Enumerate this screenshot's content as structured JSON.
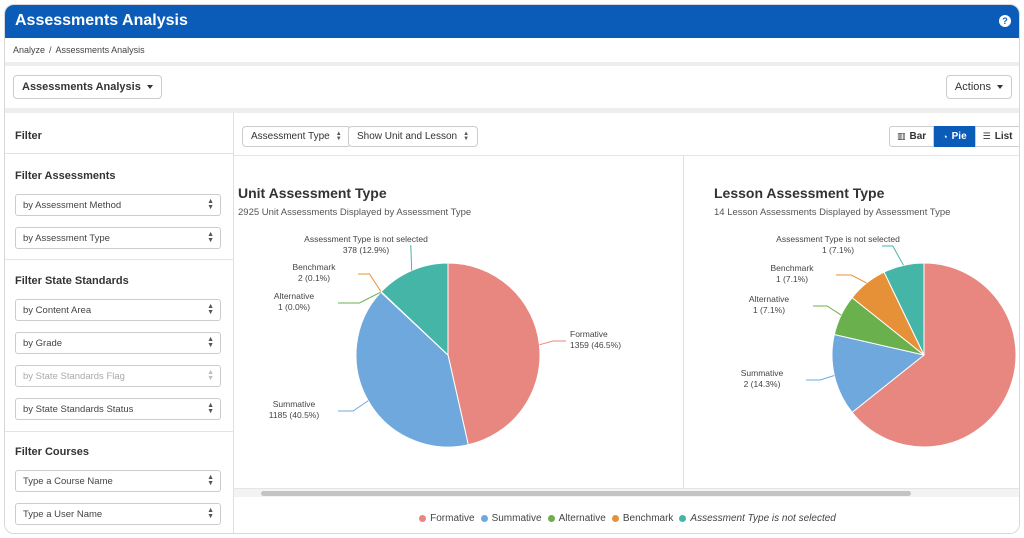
{
  "app": {
    "title": "Assessments Analysis"
  },
  "breadcrumb": {
    "items": [
      "Analyze",
      "Assessments Analysis"
    ],
    "separator": "/"
  },
  "toolbar": {
    "view_select": "Assessments Analysis",
    "actions_label": "Actions"
  },
  "sidebar": {
    "title": "Filter",
    "sections": [
      {
        "title": "Filter Assessments",
        "selects": [
          {
            "label": "by Assessment Method",
            "disabled": false
          },
          {
            "label": "by Assessment Type",
            "disabled": false
          }
        ]
      },
      {
        "title": "Filter State Standards",
        "selects": [
          {
            "label": "by Content Area",
            "disabled": false
          },
          {
            "label": "by Grade",
            "disabled": false
          },
          {
            "label": "by State Standards Flag",
            "disabled": true
          },
          {
            "label": "by State Standards Status",
            "disabled": false
          }
        ]
      },
      {
        "title": "Filter Courses",
        "selects": [
          {
            "label": "Type a Course Name",
            "disabled": false
          },
          {
            "label": "Type a User Name",
            "disabled": false
          }
        ]
      }
    ]
  },
  "main": {
    "group_by": "Assessment Type",
    "show_option": "Show Unit and Lesson",
    "view_toggle": [
      {
        "label": "Bar",
        "icon": "bar-chart-icon",
        "active": false
      },
      {
        "label": "Pie",
        "icon": "pie-chart-icon",
        "active": true
      },
      {
        "label": "List",
        "icon": "list-icon",
        "active": false
      }
    ]
  },
  "colors": {
    "Formative": "#e8877f",
    "Summative": "#6fa8dc",
    "Alternative": "#6ab04c",
    "Benchmark": "#e69138",
    "Assessment Type is not selected": "#45b5a8"
  },
  "chart_data": [
    {
      "type": "pie",
      "title": "Unit Assessment Type",
      "subtitle": "2925 Unit Assessments Displayed by Assessment Type",
      "slices": [
        {
          "name": "Formative",
          "value": 1359,
          "label": "Formative",
          "value_label": "1359 (46.5%)"
        },
        {
          "name": "Summative",
          "value": 1185,
          "label": "Summative",
          "value_label": "1185 (40.5%)"
        },
        {
          "name": "Alternative",
          "value": 1,
          "label": "Alternative",
          "value_label": "1 (0.0%)"
        },
        {
          "name": "Benchmark",
          "value": 2,
          "label": "Benchmark",
          "value_label": "2 (0.1%)"
        },
        {
          "name": "Assessment Type is not selected",
          "value": 378,
          "label": "Assessment Type is not selected",
          "value_label": "378 (12.9%)"
        }
      ]
    },
    {
      "type": "pie",
      "title": "Lesson Assessment Type",
      "subtitle": "14 Lesson Assessments Displayed by Assessment Type",
      "slices": [
        {
          "name": "Formative",
          "value": 9,
          "label": "",
          "value_label": ""
        },
        {
          "name": "Summative",
          "value": 2,
          "label": "Summative",
          "value_label": "2 (14.3%)"
        },
        {
          "name": "Alternative",
          "value": 1,
          "label": "Alternative",
          "value_label": "1 (7.1%)"
        },
        {
          "name": "Benchmark",
          "value": 1,
          "label": "Benchmark",
          "value_label": "1 (7.1%)"
        },
        {
          "name": "Assessment Type is not selected",
          "value": 1,
          "label": "Assessment Type is not selected",
          "value_label": "1 (7.1%)"
        }
      ]
    }
  ],
  "legend": [
    {
      "name": "Formative",
      "italic": false
    },
    {
      "name": "Summative",
      "italic": false
    },
    {
      "name": "Alternative",
      "italic": false
    },
    {
      "name": "Benchmark",
      "italic": false
    },
    {
      "name": "Assessment Type is not selected",
      "italic": true
    }
  ]
}
